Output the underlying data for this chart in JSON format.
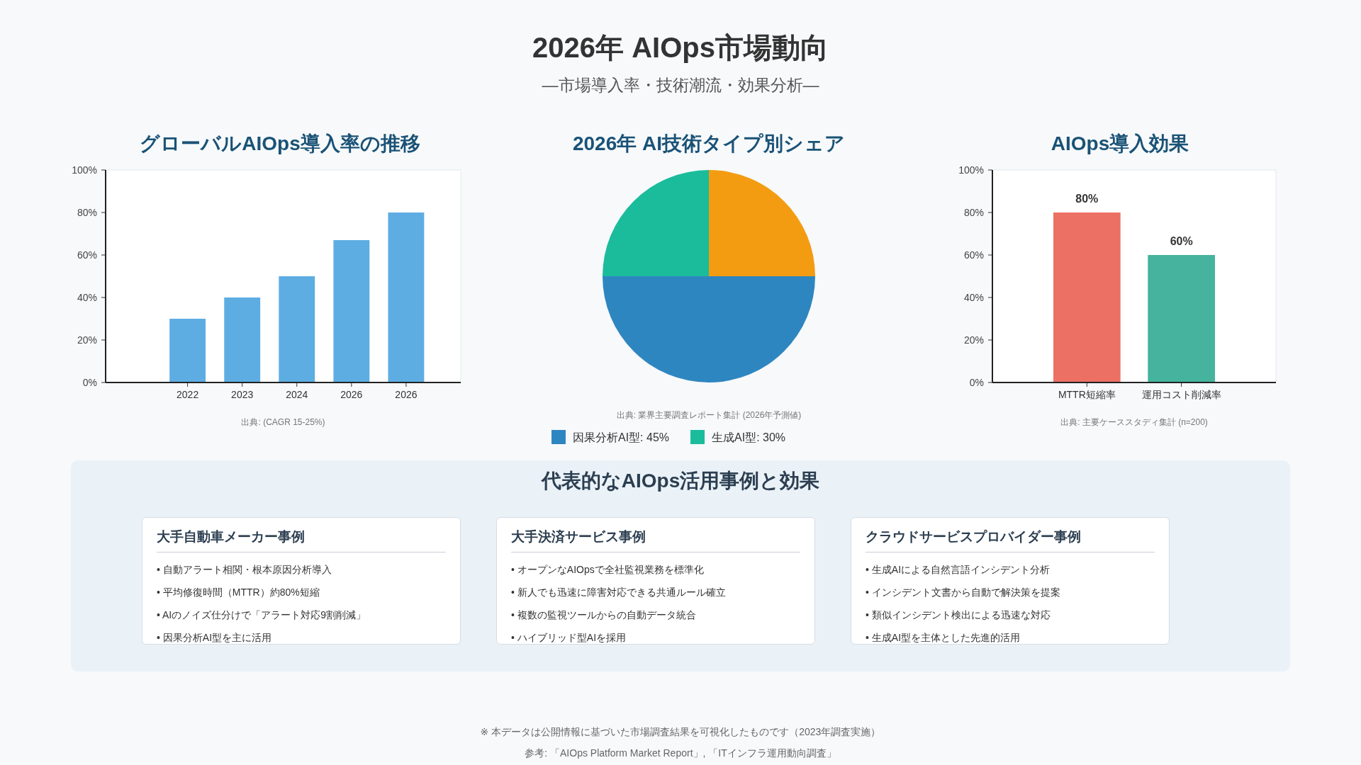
{
  "chart_data": [
    {
      "type": "other",
      "title": "2026年 AIOps市場動向",
      "subtitle": "—市場導入率・技術潮流・効果分析—",
      "annotations": [
        "※ 本データは公開情報に基づいた市場調査結果を可視化したものです（2023年調査実施）",
        "参考: 「AIOps Platform Market Report」, 「ITインフラ運用動向調査」"
      ]
    },
    {
      "type": "bar",
      "title": "グローバルAIOps導入率の推移",
      "categories": [
        "2022",
        "2023",
        "2024",
        "2026",
        "2026"
      ],
      "values": [
        30,
        40,
        50,
        67,
        80
      ],
      "color": "#5dade2",
      "ylim": [
        0,
        100
      ],
      "yticks": [
        {
          "value": 0,
          "label": "0%"
        },
        {
          "value": 20,
          "label": "20%"
        },
        {
          "value": 40,
          "label": "40%"
        },
        {
          "value": 60,
          "label": "60%"
        },
        {
          "value": 80,
          "label": "80%"
        },
        {
          "value": 100,
          "label": "100%"
        }
      ],
      "annotations": [
        "出典: (CAGR 15-25%)"
      ]
    },
    {
      "type": "pie",
      "title": "2026年 AI技術タイプ別シェア",
      "categories": [
        "因果分析AI型: 45%",
        "生成AI型: 30%",
        null
      ],
      "values": [
        50,
        25,
        25
      ],
      "colors": [
        "#2e86c1",
        "#1abc9c",
        "#f39c12"
      ],
      "legend": "bottom",
      "annotations": [
        "出典: 業界主要調査レポート集計 (2026年予測値)"
      ]
    },
    {
      "type": "bar",
      "title": "AIOps導入効果",
      "categories": [
        "MTTR短縮率",
        "運用コスト削減率"
      ],
      "values": [
        80,
        60
      ],
      "colors": [
        "#ec7063",
        "#45b39d"
      ],
      "value_labels": [
        "80%",
        "60%"
      ],
      "ylim": [
        0,
        100
      ],
      "yticks": [
        {
          "value": 0,
          "label": "0%"
        },
        {
          "value": 20,
          "label": "20%"
        },
        {
          "value": 40,
          "label": "40%"
        },
        {
          "value": 60,
          "label": "60%"
        },
        {
          "value": 80,
          "label": "80%"
        },
        {
          "value": 100,
          "label": "100%"
        }
      ],
      "annotations": [
        "出典: 主要ケーススタディ集計 (n=200)"
      ]
    },
    {
      "type": "other",
      "title": "代表的なAIOps活用事例と効果"
    },
    {
      "type": "other",
      "title": "大手自動車メーカー事例",
      "annotations": [
        "• 自動アラート相関・根本原因分析導入",
        "• 平均修復時間（MTTR）約80%短縮",
        "• AIのノイズ仕分けで「アラート対応9割削減」",
        "• 因果分析AI型を主に活用"
      ]
    },
    {
      "type": "other",
      "title": "大手決済サービス事例",
      "annotations": [
        "• オープンなAIOpsで全社監視業務を標準化",
        "• 新人でも迅速に障害対応できる共通ルール確立",
        "• 複数の監視ツールからの自動データ統合",
        "• ハイブリッド型AIを採用"
      ]
    },
    {
      "type": "other",
      "title": "クラウドサービスプロバイダー事例",
      "annotations": [
        "• 生成AIによる自然言語インシデント分析",
        "• インシデント文書から自動で解決策を提案",
        "• 類似インシデント検出による迅速な対応",
        "• 生成AI型を主体とした先進的活用"
      ]
    }
  ]
}
